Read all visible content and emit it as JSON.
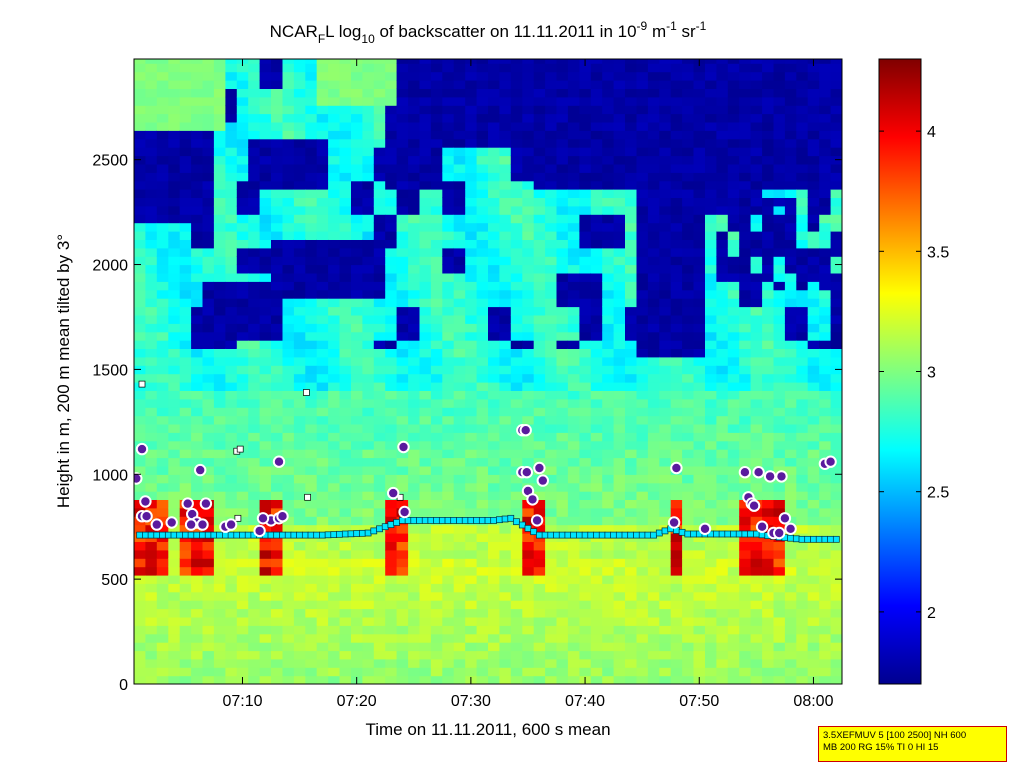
{
  "chart_data": {
    "type": "heatmap",
    "title": {
      "prefix": "NCAR",
      "sub_f": "F",
      "mid": "L log",
      "sub_10": "10",
      "rest": " of backscatter on 11.11.2011 in 10",
      "sup_exp": "-9",
      "unit_m": " m",
      "sup_m": "-1",
      "unit_sr": " sr",
      "sup_sr": "-1"
    },
    "xlabel": "Time on 11.11.2011, 600 s mean",
    "ylabel": "Height in m, 200 m mean tilted by 3°",
    "x_range_minutes": [
      0.5,
      62.5
    ],
    "x_ticks": [
      {
        "label": "07:10",
        "value": 10
      },
      {
        "label": "07:20",
        "value": 20
      },
      {
        "label": "07:30",
        "value": 30
      },
      {
        "label": "07:40",
        "value": 40
      },
      {
        "label": "07:50",
        "value": 50
      },
      {
        "label": "08:00",
        "value": 60
      }
    ],
    "y_range": [
      0,
      2980
    ],
    "y_ticks": [
      {
        "label": "0",
        "value": 0
      },
      {
        "label": "500",
        "value": 500
      },
      {
        "label": "1000",
        "value": 1000
      },
      {
        "label": "1500",
        "value": 1500
      },
      {
        "label": "2000",
        "value": 2000
      },
      {
        "label": "2500",
        "value": 2500
      }
    ],
    "colorbar": {
      "range": [
        1.7,
        4.3
      ],
      "ticks": [
        {
          "label": "2",
          "value": 2
        },
        {
          "label": "2.5",
          "value": 2.5
        },
        {
          "label": "3",
          "value": 3
        },
        {
          "label": "3.5",
          "value": 3.5
        },
        {
          "label": "4",
          "value": 4
        }
      ]
    },
    "cloud_base_series": [
      {
        "x": 1,
        "y": 710
      },
      {
        "x": 3,
        "y": 710
      },
      {
        "x": 5,
        "y": 710
      },
      {
        "x": 7,
        "y": 710
      },
      {
        "x": 9,
        "y": 710
      },
      {
        "x": 11,
        "y": 710
      },
      {
        "x": 13,
        "y": 710
      },
      {
        "x": 15,
        "y": 710
      },
      {
        "x": 17,
        "y": 710
      },
      {
        "x": 19,
        "y": 715
      },
      {
        "x": 21,
        "y": 720
      },
      {
        "x": 22.5,
        "y": 750
      },
      {
        "x": 24,
        "y": 780
      },
      {
        "x": 26,
        "y": 780
      },
      {
        "x": 28,
        "y": 780
      },
      {
        "x": 30,
        "y": 780
      },
      {
        "x": 32,
        "y": 780
      },
      {
        "x": 33.5,
        "y": 790
      },
      {
        "x": 36,
        "y": 710
      },
      {
        "x": 38,
        "y": 710
      },
      {
        "x": 40,
        "y": 710
      },
      {
        "x": 42,
        "y": 710
      },
      {
        "x": 44,
        "y": 710
      },
      {
        "x": 46,
        "y": 710
      },
      {
        "x": 47.5,
        "y": 740
      },
      {
        "x": 49,
        "y": 715
      },
      {
        "x": 51,
        "y": 715
      },
      {
        "x": 53,
        "y": 715
      },
      {
        "x": 55,
        "y": 715
      },
      {
        "x": 57,
        "y": 700
      },
      {
        "x": 59,
        "y": 690
      },
      {
        "x": 61,
        "y": 690
      },
      {
        "x": 62.3,
        "y": 690
      }
    ],
    "isolated_squares": [
      {
        "x": 1.2,
        "y": 1430
      },
      {
        "x": 9.5,
        "y": 1110
      },
      {
        "x": 9.8,
        "y": 1120
      },
      {
        "x": 15.6,
        "y": 1390
      },
      {
        "x": 15.7,
        "y": 890
      },
      {
        "x": 9.6,
        "y": 790
      },
      {
        "x": 23.8,
        "y": 890
      }
    ],
    "circle_markers": [
      {
        "x": 0.7,
        "y": 980
      },
      {
        "x": 1.2,
        "y": 1120
      },
      {
        "x": 1.5,
        "y": 870
      },
      {
        "x": 1.2,
        "y": 800
      },
      {
        "x": 1.6,
        "y": 800
      },
      {
        "x": 2.5,
        "y": 760
      },
      {
        "x": 3.8,
        "y": 770
      },
      {
        "x": 5.2,
        "y": 860
      },
      {
        "x": 5.6,
        "y": 810
      },
      {
        "x": 6.0,
        "y": 770
      },
      {
        "x": 6.5,
        "y": 760
      },
      {
        "x": 5.5,
        "y": 760
      },
      {
        "x": 6.3,
        "y": 1020
      },
      {
        "x": 6.8,
        "y": 860
      },
      {
        "x": 8.5,
        "y": 750
      },
      {
        "x": 9.0,
        "y": 760
      },
      {
        "x": 11.5,
        "y": 730
      },
      {
        "x": 12.5,
        "y": 780
      },
      {
        "x": 13.2,
        "y": 790
      },
      {
        "x": 13.5,
        "y": 800
      },
      {
        "x": 13.2,
        "y": 1060
      },
      {
        "x": 11.8,
        "y": 790
      },
      {
        "x": 23.2,
        "y": 910
      },
      {
        "x": 24.1,
        "y": 1130
      },
      {
        "x": 24.2,
        "y": 820
      },
      {
        "x": 34.5,
        "y": 1210
      },
      {
        "x": 34.8,
        "y": 1210
      },
      {
        "x": 34.5,
        "y": 1010
      },
      {
        "x": 34.9,
        "y": 1010
      },
      {
        "x": 35.0,
        "y": 920
      },
      {
        "x": 35.4,
        "y": 880
      },
      {
        "x": 36.0,
        "y": 1030
      },
      {
        "x": 36.3,
        "y": 970
      },
      {
        "x": 35.8,
        "y": 780
      },
      {
        "x": 48.0,
        "y": 1030
      },
      {
        "x": 47.8,
        "y": 770
      },
      {
        "x": 50.5,
        "y": 740
      },
      {
        "x": 54.0,
        "y": 1010
      },
      {
        "x": 54.3,
        "y": 890
      },
      {
        "x": 54.6,
        "y": 860
      },
      {
        "x": 54.8,
        "y": 850
      },
      {
        "x": 55.2,
        "y": 1010
      },
      {
        "x": 55.5,
        "y": 750
      },
      {
        "x": 56.2,
        "y": 990
      },
      {
        "x": 57.2,
        "y": 990
      },
      {
        "x": 57.5,
        "y": 790
      },
      {
        "x": 58.0,
        "y": 740
      },
      {
        "x": 56.5,
        "y": 720
      },
      {
        "x": 57.0,
        "y": 720
      },
      {
        "x": 61.0,
        "y": 1050
      },
      {
        "x": 61.5,
        "y": 1060
      }
    ]
  },
  "info_box": {
    "line1": "3.5XEFMUV 5 [100 2500] NH 600",
    "line2": "MB 200 RG 15% TI 0 HI 15"
  }
}
